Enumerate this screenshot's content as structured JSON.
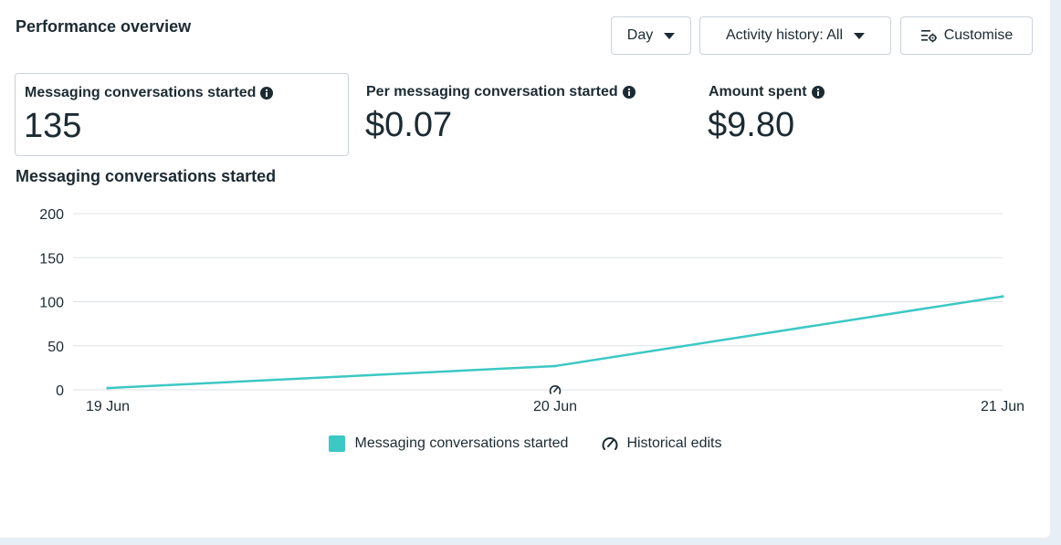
{
  "header": {
    "title": "Performance overview",
    "day_label": "Day",
    "activity_label": "Activity history: All",
    "customise_label": "Customise"
  },
  "metrics": [
    {
      "label": "Messaging conversations started",
      "value": "135"
    },
    {
      "label": "Per messaging conversation started",
      "value": "$0.07"
    },
    {
      "label": "Amount spent",
      "value": "$9.80"
    }
  ],
  "icons": {
    "info": "info-icon",
    "customise": "sliders-gear-icon",
    "dropdown": "caret-down-icon",
    "historical_edit": "gauge-edit-icon"
  },
  "colors": {
    "series": "#3cc8c4",
    "gridline": "#dde1e5",
    "text": "#1c2b33"
  },
  "chart_title": "Messaging conversations started",
  "chart_data": {
    "type": "line",
    "title": "Messaging conversations started",
    "x": [
      "19 Jun",
      "20 Jun",
      "21 Jun"
    ],
    "series": [
      {
        "name": "Messaging conversations started",
        "values": [
          2,
          27,
          106
        ]
      }
    ],
    "y_ticks": [
      0,
      50,
      100,
      150,
      200
    ],
    "ylim": [
      0,
      200
    ],
    "grid": true,
    "legend_position": "bottom",
    "historical_edit_markers": [
      "20 Jun"
    ]
  },
  "legend": {
    "series_label": "Messaging conversations started",
    "historical_label": "Historical edits"
  }
}
